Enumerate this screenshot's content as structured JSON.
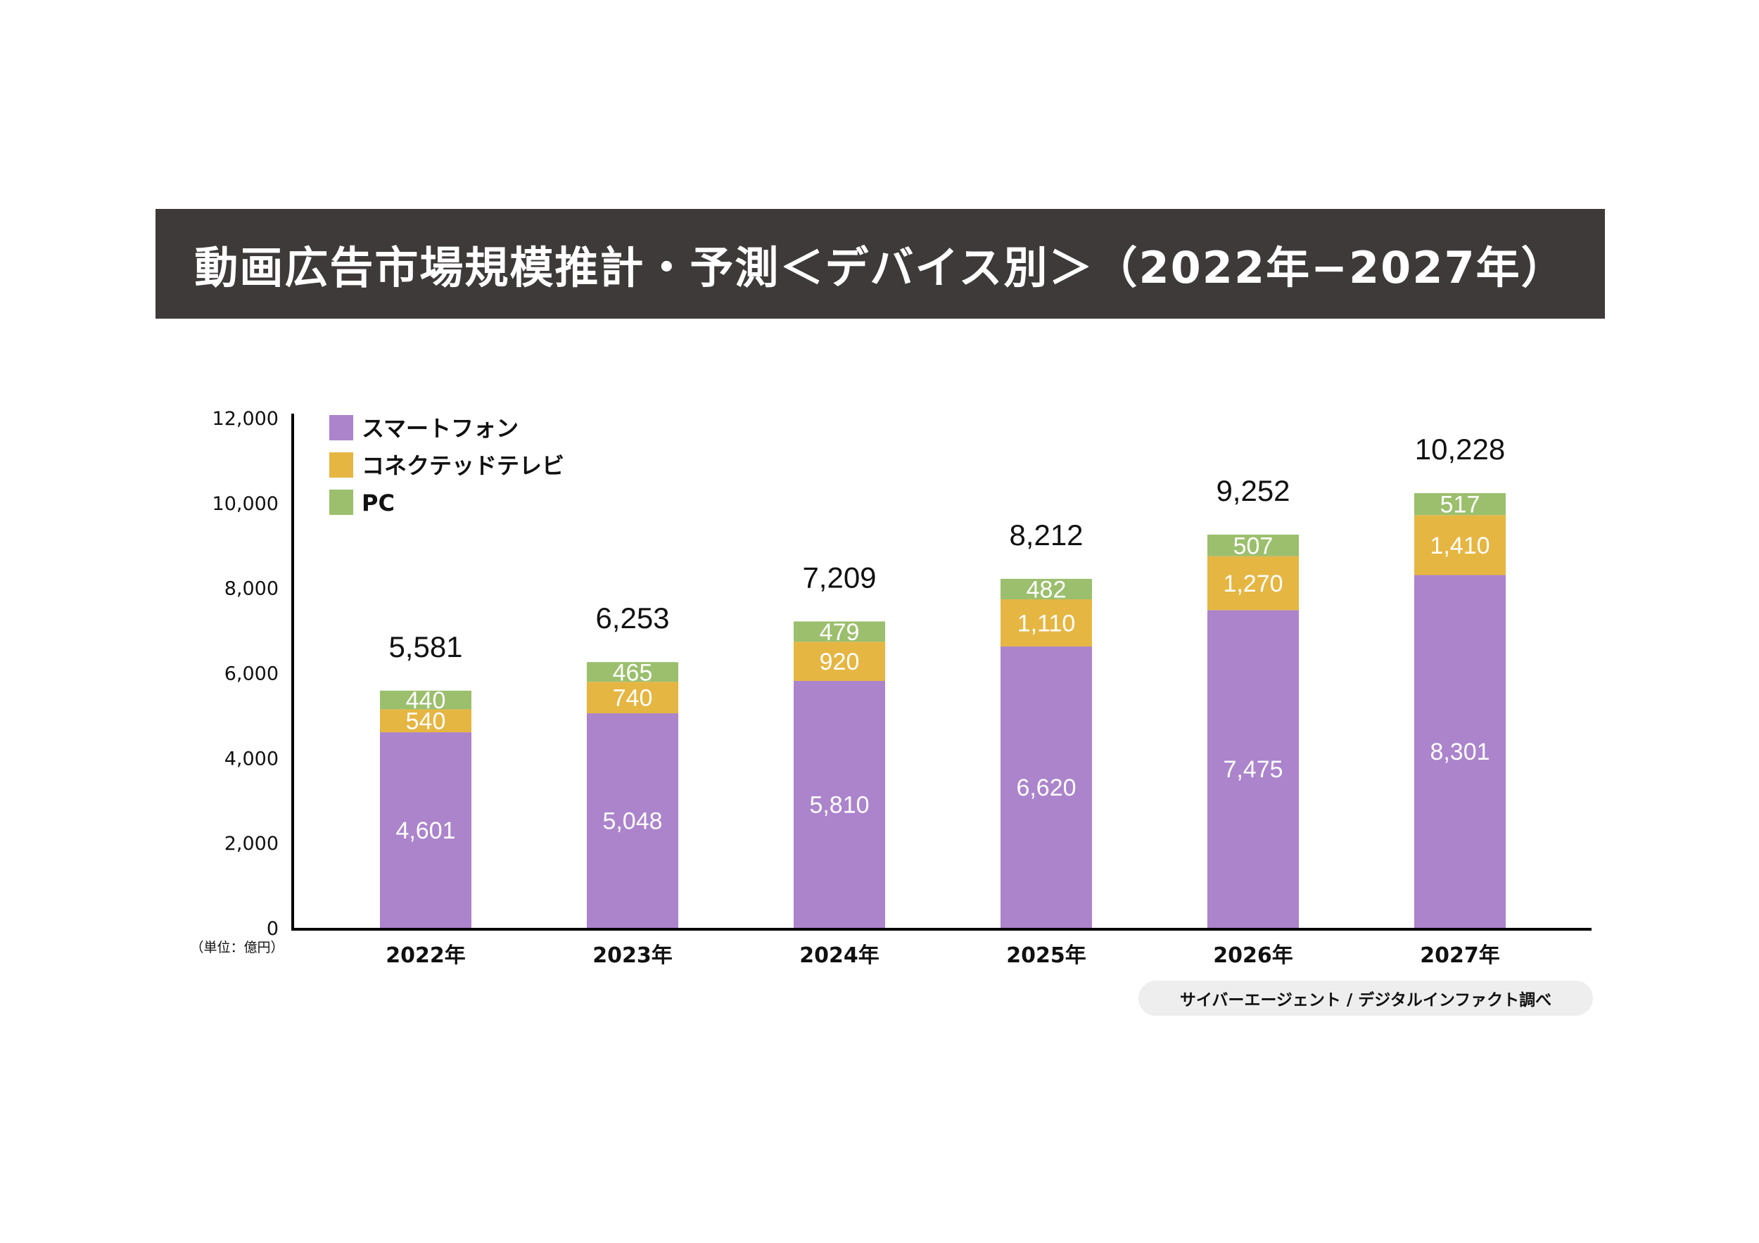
{
  "header": {
    "title": "動画広告市場規模推計・予測＜デバイス別＞（2022年−2027年）"
  },
  "source": {
    "label": "サイバーエージェント / デジタルインファクト調べ"
  },
  "colors": {
    "title_bar": "#3d3a39",
    "smartphone": "#ab84cc",
    "connected_tv": "#e6b643",
    "pc": "#9bbf6d",
    "source_pill": "#eeeeee"
  },
  "chart_data": {
    "type": "bar",
    "stacked": true,
    "title": "動画広告市場規模推計・予測＜デバイス別＞（2022年−2027年）",
    "xlabel": "",
    "ylabel": "",
    "unit_label": "（単位：億円）",
    "ylim": [
      0,
      12000
    ],
    "yticks": [
      0,
      2000,
      4000,
      6000,
      8000,
      10000,
      12000
    ],
    "ytick_labels": [
      "0",
      "2,000",
      "4,000",
      "6,000",
      "8,000",
      "10,000",
      "12,000"
    ],
    "grid": false,
    "legend_position": "top-left",
    "categories": [
      "2022年",
      "2023年",
      "2024年",
      "2025年",
      "2026年",
      "2027年"
    ],
    "series": [
      {
        "name": "スマートフォン",
        "color": "#ab84cc",
        "values": [
          4601,
          5048,
          5810,
          6620,
          7475,
          8301
        ],
        "labels": [
          "4,601",
          "5,048",
          "5,810",
          "6,620",
          "7,475",
          "8,301"
        ]
      },
      {
        "name": "コネクテッドテレビ",
        "color": "#e6b643",
        "values": [
          540,
          740,
          920,
          1110,
          1270,
          1410
        ],
        "labels": [
          "540",
          "740",
          "920",
          "1,110",
          "1,270",
          "1,410"
        ]
      },
      {
        "name": "PC",
        "color": "#9bbf6d",
        "values": [
          440,
          465,
          479,
          482,
          507,
          517
        ],
        "labels": [
          "440",
          "465",
          "479",
          "482",
          "507",
          "517"
        ]
      }
    ],
    "totals": [
      5581,
      6253,
      7209,
      8212,
      9252,
      10228
    ],
    "total_labels": [
      "5,581",
      "6,253",
      "7,209",
      "8,212",
      "9,252",
      "10,228"
    ]
  }
}
